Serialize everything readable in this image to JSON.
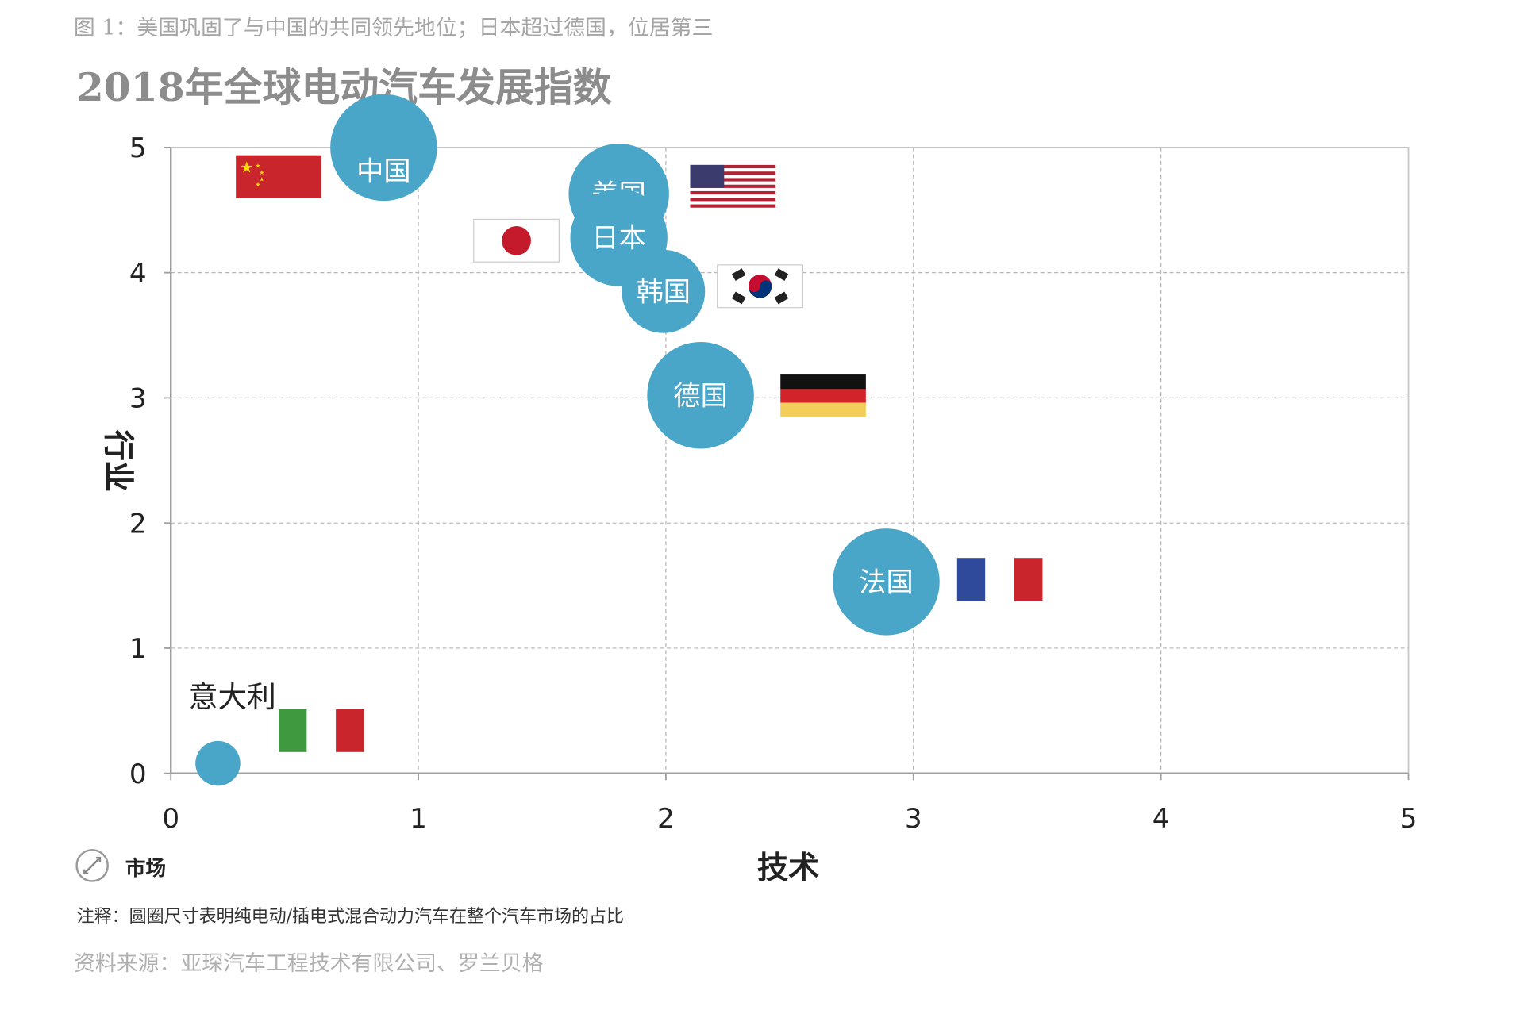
{
  "figure_caption": "图 1：美国巩固了与中国的共同领先地位；日本超过德国，位居第三",
  "note": "注释：圆圈尺寸表明纯电动/插电式混合动力汽车在整个汽车市场的占比",
  "source": "资料来源：亚琛汽车工程技术有限公司、罗兰贝格",
  "legend": {
    "icon": "bubble-size-icon",
    "label": "市场"
  },
  "colors": {
    "bubble": "#4aa6c8",
    "grid": "#b5b5b5",
    "axis": "#a0a0a0"
  },
  "chart_data": {
    "type": "scatter",
    "title": "2018年全球电动汽车发展指数",
    "xlabel": "技术",
    "ylabel": "行业",
    "xlim": [
      0,
      5
    ],
    "ylim": [
      0,
      5
    ],
    "xticks": [
      "0",
      "1",
      "2",
      "3",
      "4",
      "5"
    ],
    "yticks": [
      "0",
      "1",
      "2",
      "3",
      "4",
      "5"
    ],
    "grid": true,
    "size_meaning": "市场",
    "points": [
      {
        "name": "中国",
        "flag": "china",
        "x": 0.86,
        "y": 5.0,
        "size": 1.0
      },
      {
        "name": "美国",
        "flag": "usa",
        "x": 1.81,
        "y": 4.63,
        "size": 0.94
      },
      {
        "name": "日本",
        "flag": "japan",
        "x": 1.81,
        "y": 4.28,
        "size": 0.91
      },
      {
        "name": "韩国",
        "flag": "korea",
        "x": 1.99,
        "y": 3.85,
        "size": 0.78
      },
      {
        "name": "德国",
        "flag": "germany",
        "x": 2.14,
        "y": 3.02,
        "size": 1.0
      },
      {
        "name": "法国",
        "flag": "france",
        "x": 2.89,
        "y": 1.53,
        "size": 1.0
      },
      {
        "name": "意大利",
        "flag": "italy",
        "x": 0.19,
        "y": 0.08,
        "size": 0.42
      }
    ]
  }
}
